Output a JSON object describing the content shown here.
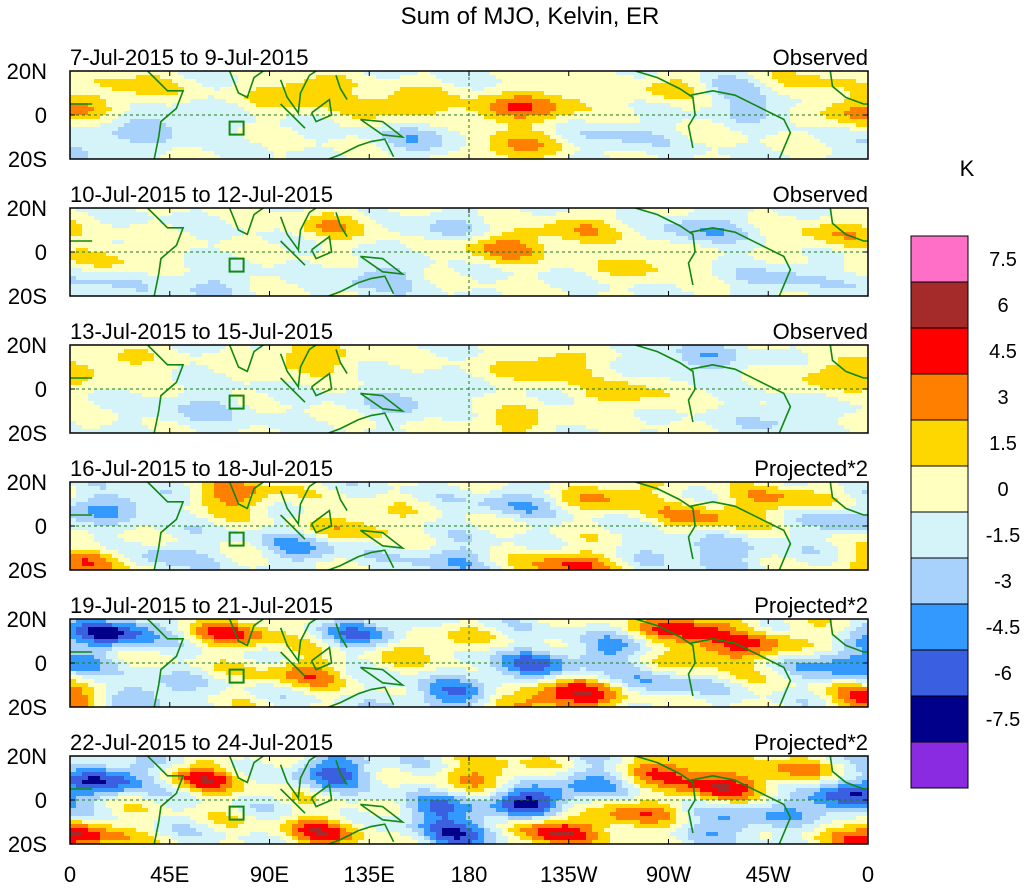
{
  "chart_data": {
    "type": "heatmap",
    "title": "Sum of MJO, Kelvin, ER",
    "units_label": "K",
    "x_ticks": [
      "0",
      "45E",
      "90E",
      "135E",
      "180",
      "135W",
      "90W",
      "45W",
      "0"
    ],
    "x_range_degrees_east": [
      0,
      360
    ],
    "y_ticks": [
      "20N",
      "0",
      "20S"
    ],
    "y_range_degrees": [
      -20,
      20
    ],
    "colorbar": {
      "levels": [
        7.5,
        6,
        4.5,
        3,
        1.5,
        0,
        -1.5,
        -3,
        -4.5,
        -6,
        -7.5
      ],
      "labels": [
        "7.5",
        "6",
        "4.5",
        "3",
        "1.5",
        "0",
        "-1.5",
        "-3",
        "-4.5",
        "-6",
        "-7.5"
      ],
      "colors": [
        "#ff6ec7",
        "#a52a2a",
        "#ff0000",
        "#ff7f00",
        "#ffd700",
        "#ffffc0",
        "#d4f4fa",
        "#a8d2fb",
        "#3399ff",
        "#3a5fe0",
        "#00008b",
        "#8a2be2"
      ]
    },
    "panels": [
      {
        "date_range": "7-Jul-2015 to 9-Jul-2015",
        "label": "Observed",
        "amplitude": 2.4,
        "blobs": [
          [
            28,
            12,
            2.4
          ],
          [
            105,
            10,
            3.6
          ],
          [
            150,
            5,
            3.2
          ],
          [
            195,
            2,
            3.5
          ],
          [
            275,
            12,
            2.8
          ],
          [
            200,
            -15,
            3.4
          ],
          [
            355,
            2,
            3.4
          ],
          [
            220,
            6,
            2.5
          ],
          [
            330,
            14,
            2.2
          ],
          [
            40,
            -5,
            -2.2
          ],
          [
            160,
            -10,
            -2.4
          ],
          [
            295,
            12,
            -2.6
          ],
          [
            315,
            4,
            -2.0
          ],
          [
            250,
            -10,
            -1.8
          ],
          [
            10,
            -14,
            -1.8
          ]
        ]
      },
      {
        "date_range": "10-Jul-2015 to 12-Jul-2015",
        "label": "Observed",
        "amplitude": 2.3,
        "blobs": [
          [
            195,
            2,
            3.8
          ],
          [
            230,
            10,
            2.6
          ],
          [
            260,
            -5,
            2.3
          ],
          [
            120,
            12,
            2.6
          ],
          [
            20,
            -3,
            2.0
          ],
          [
            345,
            8,
            2.6
          ],
          [
            285,
            10,
            -2.8
          ],
          [
            140,
            -12,
            -2.4
          ],
          [
            60,
            -15,
            -1.8
          ],
          [
            320,
            -12,
            -2.0
          ],
          [
            170,
            10,
            -1.8
          ],
          [
            10,
            -14,
            -1.8
          ]
        ]
      },
      {
        "date_range": "13-Jul-2015 to 15-Jul-2015",
        "label": "Observed",
        "amplitude": 2.0,
        "blobs": [
          [
            108,
            14,
            3.0
          ],
          [
            215,
            10,
            3.3
          ],
          [
            250,
            -2,
            2.5
          ],
          [
            345,
            6,
            2.6
          ],
          [
            20,
            12,
            2.0
          ],
          [
            285,
            14,
            -2.6
          ],
          [
            150,
            -5,
            -2.0
          ],
          [
            60,
            -10,
            -2.0
          ],
          [
            320,
            -14,
            -1.8
          ],
          [
            200,
            -15,
            2.2
          ]
        ]
      },
      {
        "date_range": "16-Jul-2015 to 18-Jul-2015",
        "label": "Projected*2",
        "amplitude": 3.5,
        "blobs": [
          [
            75,
            14,
            4.0
          ],
          [
            15,
            -16,
            4.2
          ],
          [
            225,
            -18,
            4.5
          ],
          [
            245,
            14,
            3.5
          ],
          [
            285,
            4,
            3.5
          ],
          [
            320,
            12,
            3.0
          ],
          [
            130,
            0,
            3.0
          ],
          [
            40,
            -14,
            -3.0
          ],
          [
            105,
            -10,
            -3.0
          ],
          [
            25,
            10,
            -3.0
          ],
          [
            200,
            10,
            -2.5
          ],
          [
            170,
            -15,
            -2.6
          ],
          [
            300,
            -14,
            -2.0
          ],
          [
            350,
            2,
            -2.4
          ],
          [
            275,
            -10,
            -2.0
          ]
        ]
      },
      {
        "date_range": "19-Jul-2015 to 21-Jul-2015",
        "label": "Projected*2",
        "amplitude": 4.2,
        "blobs": [
          [
            20,
            14,
            -6.5
          ],
          [
            30,
            -14,
            -4.2
          ],
          [
            75,
            14,
            4.6
          ],
          [
            105,
            -4,
            3.5
          ],
          [
            135,
            14,
            -4.2
          ],
          [
            205,
            -2,
            -4.5
          ],
          [
            215,
            -15,
            5.0
          ],
          [
            280,
            16,
            5.5
          ],
          [
            290,
            4,
            4.0
          ],
          [
            350,
            0,
            -5.0
          ],
          [
            5,
            -16,
            5.0
          ],
          [
            170,
            -15,
            -4.2
          ],
          [
            240,
            5,
            -3.2
          ],
          [
            320,
            10,
            3.0
          ],
          [
            240,
            -15,
            3.5
          ],
          [
            265,
            -10,
            -3.0
          ],
          [
            160,
            8,
            3.0
          ]
        ]
      },
      {
        "date_range": "22-Jul-2015 to 24-Jul-2015",
        "label": "Projected*2",
        "amplitude": 4.5,
        "blobs": [
          [
            20,
            10,
            -6.0
          ],
          [
            5,
            -16,
            5.5
          ],
          [
            60,
            10,
            4.5
          ],
          [
            120,
            13,
            -5.0
          ],
          [
            115,
            -14,
            4.5
          ],
          [
            165,
            -5,
            -4.0
          ],
          [
            210,
            0,
            -6.5
          ],
          [
            215,
            -15,
            5.5
          ],
          [
            270,
            14,
            5.0
          ],
          [
            290,
            5,
            4.5
          ],
          [
            300,
            -10,
            -4.0
          ],
          [
            345,
            0,
            -6.0
          ],
          [
            320,
            12,
            3.5
          ],
          [
            190,
            12,
            3.5
          ],
          [
            240,
            10,
            -3.0
          ],
          [
            180,
            -15,
            -5.0
          ],
          [
            250,
            -8,
            4.0
          ]
        ]
      }
    ]
  }
}
